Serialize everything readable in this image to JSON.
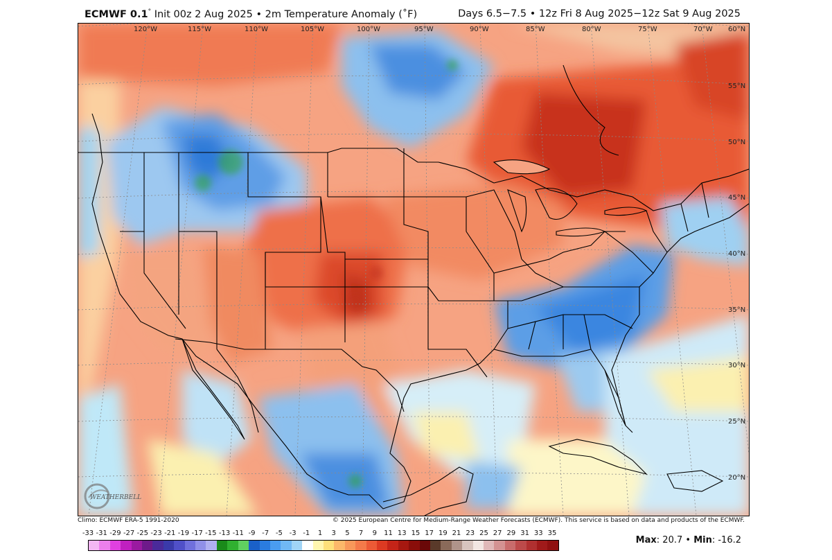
{
  "header": {
    "model": "ECMWF 0.1",
    "degree": "°",
    "init_and_field": " Init 00z 2 Aug 2025 • 2m Temperature Anomaly (˚F)",
    "valid": "Days 6.5−7.5 • 12z Fri 8 Aug 2025−12z Sat 9 Aug 2025"
  },
  "map": {
    "longitude_labels": [
      "120°W",
      "115°W",
      "110°W",
      "105°W",
      "100°W",
      "95°W",
      "90°W",
      "85°W",
      "80°W",
      "75°W",
      "70°W"
    ],
    "latitude_labels": [
      "60°N",
      "55°N",
      "50°N",
      "45°N",
      "40°N",
      "35°N",
      "30°N",
      "25°N",
      "20°N"
    ]
  },
  "footer": {
    "climo": "Climo: ECMWF ERA-5 1991-2020",
    "credit": "© 2025 European Centre for Medium-Range Weather Forecasts (ECMWF). This service is based on data and products of the ECMWF."
  },
  "colorbar": {
    "ticks": [
      "-33",
      "-31",
      "-29",
      "-27",
      "-25",
      "-23",
      "-21",
      "-19",
      "-17",
      "-15",
      "-13",
      "-11",
      "-9",
      "-7",
      "-5",
      "-3",
      "-1",
      "1",
      "3",
      "5",
      "7",
      "9",
      "11",
      "13",
      "15",
      "17",
      "19",
      "21",
      "23",
      "25",
      "27",
      "29",
      "31",
      "33",
      "35"
    ],
    "colors": [
      "#f4b6f4",
      "#ec7fec",
      "#e040e0",
      "#c020c0",
      "#9a1aa0",
      "#6e1a8a",
      "#4a2a9a",
      "#3a3aaa",
      "#5050c8",
      "#7070dc",
      "#9090e8",
      "#b0b0f0",
      "#1a8a1a",
      "#30b030",
      "#60d060",
      "#1a60c8",
      "#2a7ce0",
      "#4a9cf0",
      "#70b8f4",
      "#a0d4f6",
      "#ffffff",
      "#fff6b0",
      "#fde07a",
      "#fcb86a",
      "#f8985a",
      "#f47a4a",
      "#ec5a36",
      "#dc3a22",
      "#c42418",
      "#a61810",
      "#8a0e0a",
      "#6a0808",
      "#5a3a2a",
      "#8a6a5a",
      "#b0948a",
      "#d8c4be",
      "#f2e6e2",
      "#e0b8b8",
      "#d49292",
      "#c86c6c",
      "#bc4a4a",
      "#b03030",
      "#a01a1a",
      "#901010"
    ]
  },
  "stats": {
    "max_label": "Max",
    "max_value": ": 20.7",
    "sep": " • ",
    "min_label": "Min",
    "min_value": ": -16.2"
  },
  "logo": {
    "text": "WEATHERBELL"
  }
}
